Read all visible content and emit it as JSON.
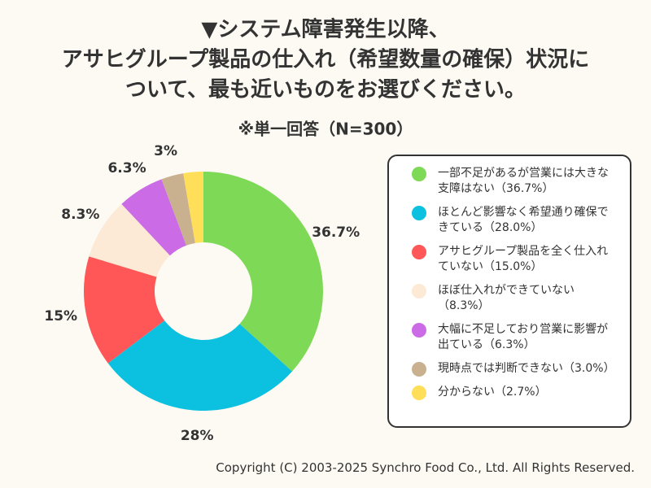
{
  "chart_data": {
    "type": "donut",
    "title": [
      "▼システム障害発生以降、",
      "アサヒグループ製品の仕入れ（希望数量の確保）状況に",
      "ついて、最も近いものをお選びください。"
    ],
    "subtitle": "※単一回答（N=300）",
    "categories": [
      "一部不足があるが営業には大きな支障はない（36.7%）",
      "ほとんど影響なく希望通り確保できている（28.0%）",
      "アサヒグループ製品を全く仕入れていない（15.0%）",
      "ほぼ仕入れができていない（8.3%）",
      "大幅に不足しており営業に影響が出ている（6.3%）",
      "現時点では判断できない（3.0%）",
      "分からない（2.7%）"
    ],
    "values": [
      36.7,
      28.0,
      15.0,
      8.3,
      6.3,
      3.0,
      2.7
    ],
    "value_labels": [
      "36.7%",
      "28%",
      "15%",
      "8.3%",
      "6.3%",
      "3%",
      null
    ],
    "colors": [
      "#7ed957",
      "#0cc0df",
      "#ff5757",
      "#fdead6",
      "#cb6ce6",
      "#c9b08f",
      "#ffde59"
    ],
    "legend": "right"
  },
  "copyright": "Copyright (C) 2003-2025  Synchro Food Co., Ltd. All Rights Reserved."
}
